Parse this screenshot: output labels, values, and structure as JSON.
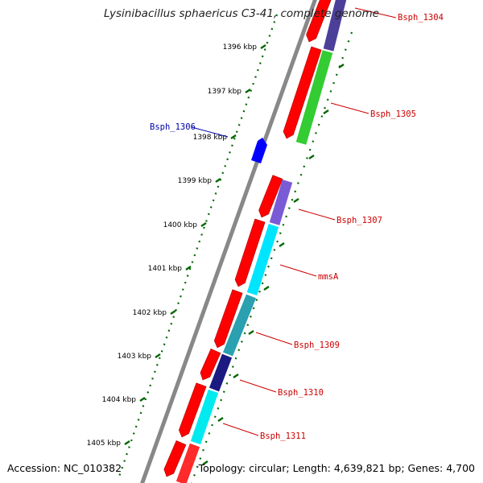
{
  "title": "Lysinibacillus sphaericus C3-41, complete genome",
  "accession": "Accession: NC_010382",
  "topology": "Topology: circular; Length: 4,639,821 bp; Genes: 4,700",
  "colors": {
    "backbone": "#888888",
    "tick": "#006600",
    "forward_gene": "#ff0000",
    "label_red": "#cc0000",
    "label_blue": "#0000aa",
    "reverse_gene_blue": "#0000ff"
  },
  "ticks": [
    {
      "label": "1396 kbp"
    },
    {
      "label": "1397 kbp"
    },
    {
      "label": "1398 kbp"
    },
    {
      "label": "1399 kbp"
    },
    {
      "label": "1400 kbp"
    },
    {
      "label": "1401 kbp"
    },
    {
      "label": "1402 kbp"
    },
    {
      "label": "1403 kbp"
    },
    {
      "label": "1404 kbp"
    },
    {
      "label": "1405 kbp"
    }
  ],
  "gene_labels": [
    {
      "text": "Bsph_1304",
      "color": "#cc0000"
    },
    {
      "text": "Bsph_1305",
      "color": "#cc0000"
    },
    {
      "text": "Bsph_1306",
      "color": "#0000aa"
    },
    {
      "text": "Bsph_1307",
      "color": "#cc0000"
    },
    {
      "text": "mmsA",
      "color": "#cc0000"
    },
    {
      "text": "Bsph_1309",
      "color": "#cc0000"
    },
    {
      "text": "Bsph_1310",
      "color": "#cc0000"
    },
    {
      "text": "Bsph_1311",
      "color": "#cc0000"
    }
  ]
}
